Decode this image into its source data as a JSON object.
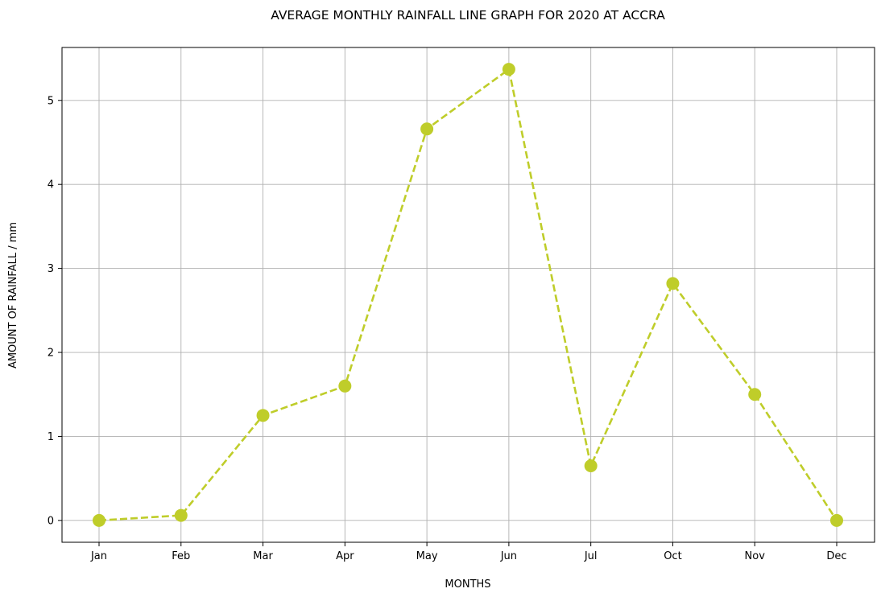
{
  "chart_data": {
    "type": "line",
    "title": "AVERAGE MONTHLY RAINFALL LINE GRAPH FOR 2020 AT ACCRA",
    "xlabel": "MONTHS",
    "ylabel": "AMOUNT OF RAINFALL / mm",
    "categories": [
      "Jan",
      "Feb",
      "Mar",
      "Apr",
      "May",
      "Jun",
      "Jul",
      "Oct",
      "Nov",
      "Dec"
    ],
    "series": [
      {
        "values": [
          0.0,
          0.06,
          1.25,
          1.6,
          4.66,
          5.37,
          0.65,
          2.82,
          1.5,
          0.0
        ],
        "color": "#bfcd2a",
        "line_style": "dashed",
        "marker": "circle"
      }
    ],
    "ylim": [
      -0.26,
      5.63
    ],
    "yticks": [
      0,
      1,
      2,
      3,
      4,
      5
    ],
    "grid": true,
    "legend": "none"
  }
}
